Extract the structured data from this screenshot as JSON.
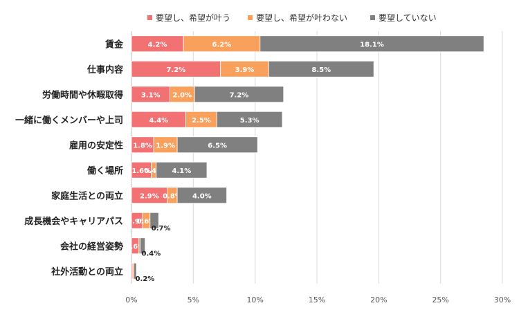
{
  "chart_data": {
    "type": "bar",
    "orientation": "horizontal",
    "stacked": true,
    "legend_position": "top",
    "grid": true,
    "categories": [
      "賃金",
      "仕事内容",
      "労働時間や休暇取得",
      "一緒に働くメンバーや上司",
      "雇用の安定性",
      "働く場所",
      "家庭生活との両立",
      "成長機会やキャリアパス",
      "会社の経営姿勢",
      "社外活動との両立"
    ],
    "series": [
      {
        "name": "要望し、希望が叶う",
        "color": "#F27173",
        "values": [
          4.2,
          7.2,
          3.1,
          4.4,
          1.8,
          1.6,
          2.9,
          0.9,
          0.6,
          0.1
        ],
        "labels": [
          "4.2%",
          "7.2%",
          "3.1%",
          "4.4%",
          "1.8%",
          "1.6%",
          "2.9%",
          "0.9%",
          "0.6%",
          ""
        ]
      },
      {
        "name": "要望し、希望が叶わない",
        "color": "#F9A05C",
        "values": [
          6.2,
          3.9,
          2.0,
          2.5,
          1.9,
          0.4,
          0.8,
          0.6,
          0.1,
          0.1
        ],
        "labels": [
          "6.2%",
          "3.9%",
          "2.0%",
          "2.5%",
          "1.9%",
          "0.4%",
          "0.8%",
          "0.6%",
          "",
          ""
        ]
      },
      {
        "name": "要望していない",
        "color": "#808080",
        "values": [
          18.1,
          8.5,
          7.2,
          5.3,
          6.5,
          4.1,
          4.0,
          0.7,
          0.4,
          0.2
        ],
        "labels": [
          "18.1%",
          "8.5%",
          "7.2%",
          "5.3%",
          "6.5%",
          "4.1%",
          "4.0%",
          "0.7%",
          "0.4%",
          "0.2%"
        ]
      }
    ],
    "xlim": [
      0,
      30
    ],
    "xticks": [
      0,
      5,
      10,
      15,
      20,
      25,
      30
    ],
    "xtick_labels": [
      "0%",
      "5%",
      "10%",
      "15%",
      "20%",
      "25%",
      "30%"
    ]
  }
}
